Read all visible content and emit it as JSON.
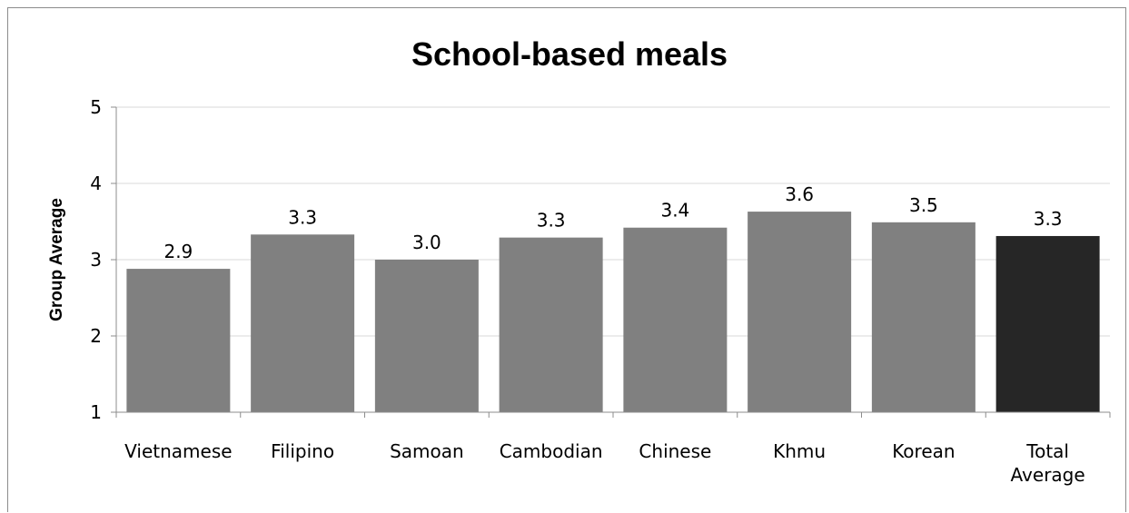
{
  "chart_data": {
    "type": "bar",
    "title": "School-based meals",
    "xlabel": "",
    "ylabel": "Group Average",
    "ylim": [
      1,
      5
    ],
    "yticks": [
      "1",
      "2",
      "3",
      "4",
      "5"
    ],
    "grid": true,
    "legend": "none",
    "categories": [
      [
        "Vietnamese"
      ],
      [
        "Filipino"
      ],
      [
        "Samoan"
      ],
      [
        "Cambodian"
      ],
      [
        "Chinese"
      ],
      [
        "Khmu"
      ],
      [
        "Korean"
      ],
      [
        "Total",
        "Average"
      ]
    ],
    "values": [
      2.88,
      3.33,
      3.0,
      3.29,
      3.42,
      3.63,
      3.49,
      3.31
    ],
    "data_labels": [
      "2.9",
      "3.3",
      "3.0",
      "3.3",
      "3.4",
      "3.6",
      "3.5",
      "3.3"
    ],
    "bar_colors": [
      "#808080",
      "#808080",
      "#808080",
      "#808080",
      "#808080",
      "#808080",
      "#808080",
      "#262626"
    ]
  }
}
